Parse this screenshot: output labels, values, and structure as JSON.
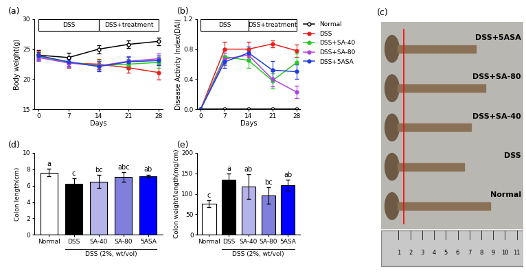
{
  "chart_data": [
    {
      "panel_label": "(a)",
      "type": "line",
      "x_label": "Days",
      "y_label": "Body weight(g)",
      "x": [
        0,
        7,
        14,
        21,
        28
      ],
      "xlim": [
        -1,
        29
      ],
      "xticks": [
        0,
        7,
        14,
        21,
        28
      ],
      "ylim": [
        15,
        30
      ],
      "yticks": [
        15,
        20,
        25,
        30
      ],
      "phases": [
        {
          "label": "DSS",
          "start": 0,
          "end": 14
        },
        {
          "label": "DSS+treatment",
          "start": 14,
          "end": 28
        }
      ],
      "series": [
        {
          "name": "Normal",
          "color": "#000000",
          "marker": "open_circle",
          "values": [
            24.0,
            23.6,
            25.0,
            25.8,
            26.3
          ],
          "errors": [
            0.8,
            0.8,
            0.7,
            0.6,
            0.6
          ]
        },
        {
          "name": "DSS",
          "color": "#e8201e",
          "marker": "circle",
          "values": [
            24.0,
            22.7,
            22.5,
            21.9,
            21.1
          ],
          "errors": [
            0.7,
            0.8,
            0.9,
            0.8,
            1.2
          ]
        },
        {
          "name": "DSS+SA-40",
          "color": "#22cc22",
          "marker": "circle",
          "values": [
            23.8,
            22.8,
            22.3,
            22.5,
            22.8
          ],
          "errors": [
            0.6,
            0.8,
            0.9,
            0.9,
            0.9
          ]
        },
        {
          "name": "DSS+SA-80",
          "color": "#b040e0",
          "marker": "circle",
          "values": [
            23.6,
            22.7,
            22.2,
            23.0,
            23.4
          ],
          "errors": [
            0.6,
            0.7,
            0.8,
            0.8,
            0.9
          ]
        },
        {
          "name": "DSS+5ASA",
          "color": "#1f3ed8",
          "marker": "circle",
          "values": [
            23.9,
            22.9,
            22.1,
            22.9,
            23.1
          ],
          "errors": [
            0.6,
            0.7,
            0.8,
            0.8,
            0.8
          ]
        }
      ]
    },
    {
      "panel_label": "(b)",
      "type": "line",
      "x_label": "Days",
      "y_label": "Disease Activity Index(DAI)",
      "x": [
        0,
        7,
        14,
        21,
        28
      ],
      "xlim": [
        -1,
        29
      ],
      "xticks": [
        0,
        7,
        14,
        21,
        28
      ],
      "ylim": [
        0,
        1.2
      ],
      "yticks": [
        {
          "value": 0,
          "label": "0.0"
        },
        0.4,
        0.8,
        1.2
      ],
      "legend": "right",
      "phases": [
        {
          "label": "DSS",
          "start": 0,
          "end": 14
        },
        {
          "label": "DSS+treatment",
          "start": 14,
          "end": 28
        }
      ],
      "series": [
        {
          "name": "Normal",
          "color": "#000000",
          "marker": "open_circle",
          "values": [
            0,
            0,
            0,
            0,
            0
          ],
          "errors": [
            0,
            0,
            0,
            0,
            0
          ]
        },
        {
          "name": "DSS",
          "color": "#e8201e",
          "marker": "circle",
          "values": [
            0,
            0.8,
            0.8,
            0.87,
            0.78
          ],
          "errors": [
            0,
            0.1,
            0.1,
            0.05,
            0.08
          ]
        },
        {
          "name": "DSS+SA-40",
          "color": "#22cc22",
          "marker": "circle",
          "values": [
            0,
            0.7,
            0.65,
            0.38,
            0.62
          ],
          "errors": [
            0,
            0.1,
            0.1,
            0.1,
            0.12
          ]
        },
        {
          "name": "DSS+SA-80",
          "color": "#b040e0",
          "marker": "circle",
          "values": [
            0,
            0.67,
            0.72,
            0.4,
            0.23
          ],
          "errors": [
            0,
            0.08,
            0.08,
            0.1,
            0.08
          ]
        },
        {
          "name": "DSS+5ASA",
          "color": "#1f3ed8",
          "marker": "circle",
          "values": [
            0,
            0.63,
            0.75,
            0.52,
            0.5
          ],
          "errors": [
            0,
            0.08,
            0.08,
            0.12,
            0.1
          ]
        }
      ]
    },
    {
      "panel_label": "(d)",
      "type": "bar",
      "y_label": "Colon length(cm)",
      "categories": [
        "Normal",
        "DSS",
        "SA-40",
        "SA-80",
        "5ASA"
      ],
      "values": [
        7.6,
        6.2,
        6.5,
        7.05,
        7.15
      ],
      "errors": [
        0.45,
        0.7,
        0.8,
        0.6,
        0.2
      ],
      "letters": [
        "a",
        "c",
        "bc",
        "abc",
        "ab"
      ],
      "colors": [
        "#ffffff",
        "#000000",
        "#b4b4ea",
        "#8080dc",
        "#0000ff"
      ],
      "group_label": "DSS (2%, wt/vol)",
      "group": [
        "DSS",
        "SA-40",
        "SA-80",
        "5ASA"
      ],
      "ylim": [
        0,
        10
      ],
      "yticks": [
        0,
        2,
        4,
        6,
        8,
        10
      ]
    },
    {
      "panel_label": "(e)",
      "type": "bar",
      "y_label": "Colon weight/length(mg/cm)",
      "categories": [
        "Normal",
        "DSS",
        "SA-40",
        "SA-80",
        "5ASA"
      ],
      "values": [
        76,
        135,
        118,
        96,
        121
      ],
      "errors": [
        8,
        15,
        30,
        20,
        14
      ],
      "letters": [
        "c",
        "a",
        "ab",
        "bc",
        "ab"
      ],
      "colors": [
        "#ffffff",
        "#000000",
        "#b4b4ea",
        "#8080dc",
        "#0000ff"
      ],
      "group_label": "DSS (2%, wt/vol)",
      "group": [
        "DSS",
        "SA-40",
        "SA-80",
        "5ASA"
      ],
      "ylim": [
        0,
        200
      ],
      "yticks": [
        0,
        50,
        100,
        150,
        200
      ]
    }
  ],
  "photo": {
    "panel_label": "(c)",
    "rows": [
      "DSS+5ASA",
      "DSS+SA-80",
      "DSS+SA-40",
      "DSS",
      "Normal"
    ],
    "ruler_ticks": [
      1,
      2,
      3,
      4,
      5,
      6,
      7,
      8,
      9,
      10,
      11
    ]
  }
}
